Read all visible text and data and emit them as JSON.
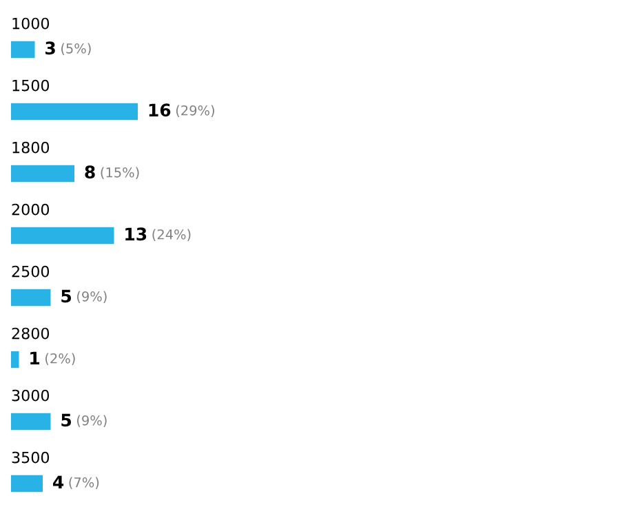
{
  "chart_data": {
    "type": "bar",
    "orientation": "horizontal",
    "categories": [
      "1000",
      "1500",
      "1800",
      "2000",
      "2500",
      "2800",
      "3000",
      "3500"
    ],
    "values": [
      3,
      16,
      8,
      13,
      5,
      1,
      5,
      4
    ],
    "value_labels": [
      "3 (5%)",
      "16 (29%)",
      "8 (15%)",
      "13 (24%)",
      "5 (9%)",
      "1 (2%)",
      "5 (9%)",
      "4 (7%)"
    ],
    "color": "#29b2e6"
  }
}
